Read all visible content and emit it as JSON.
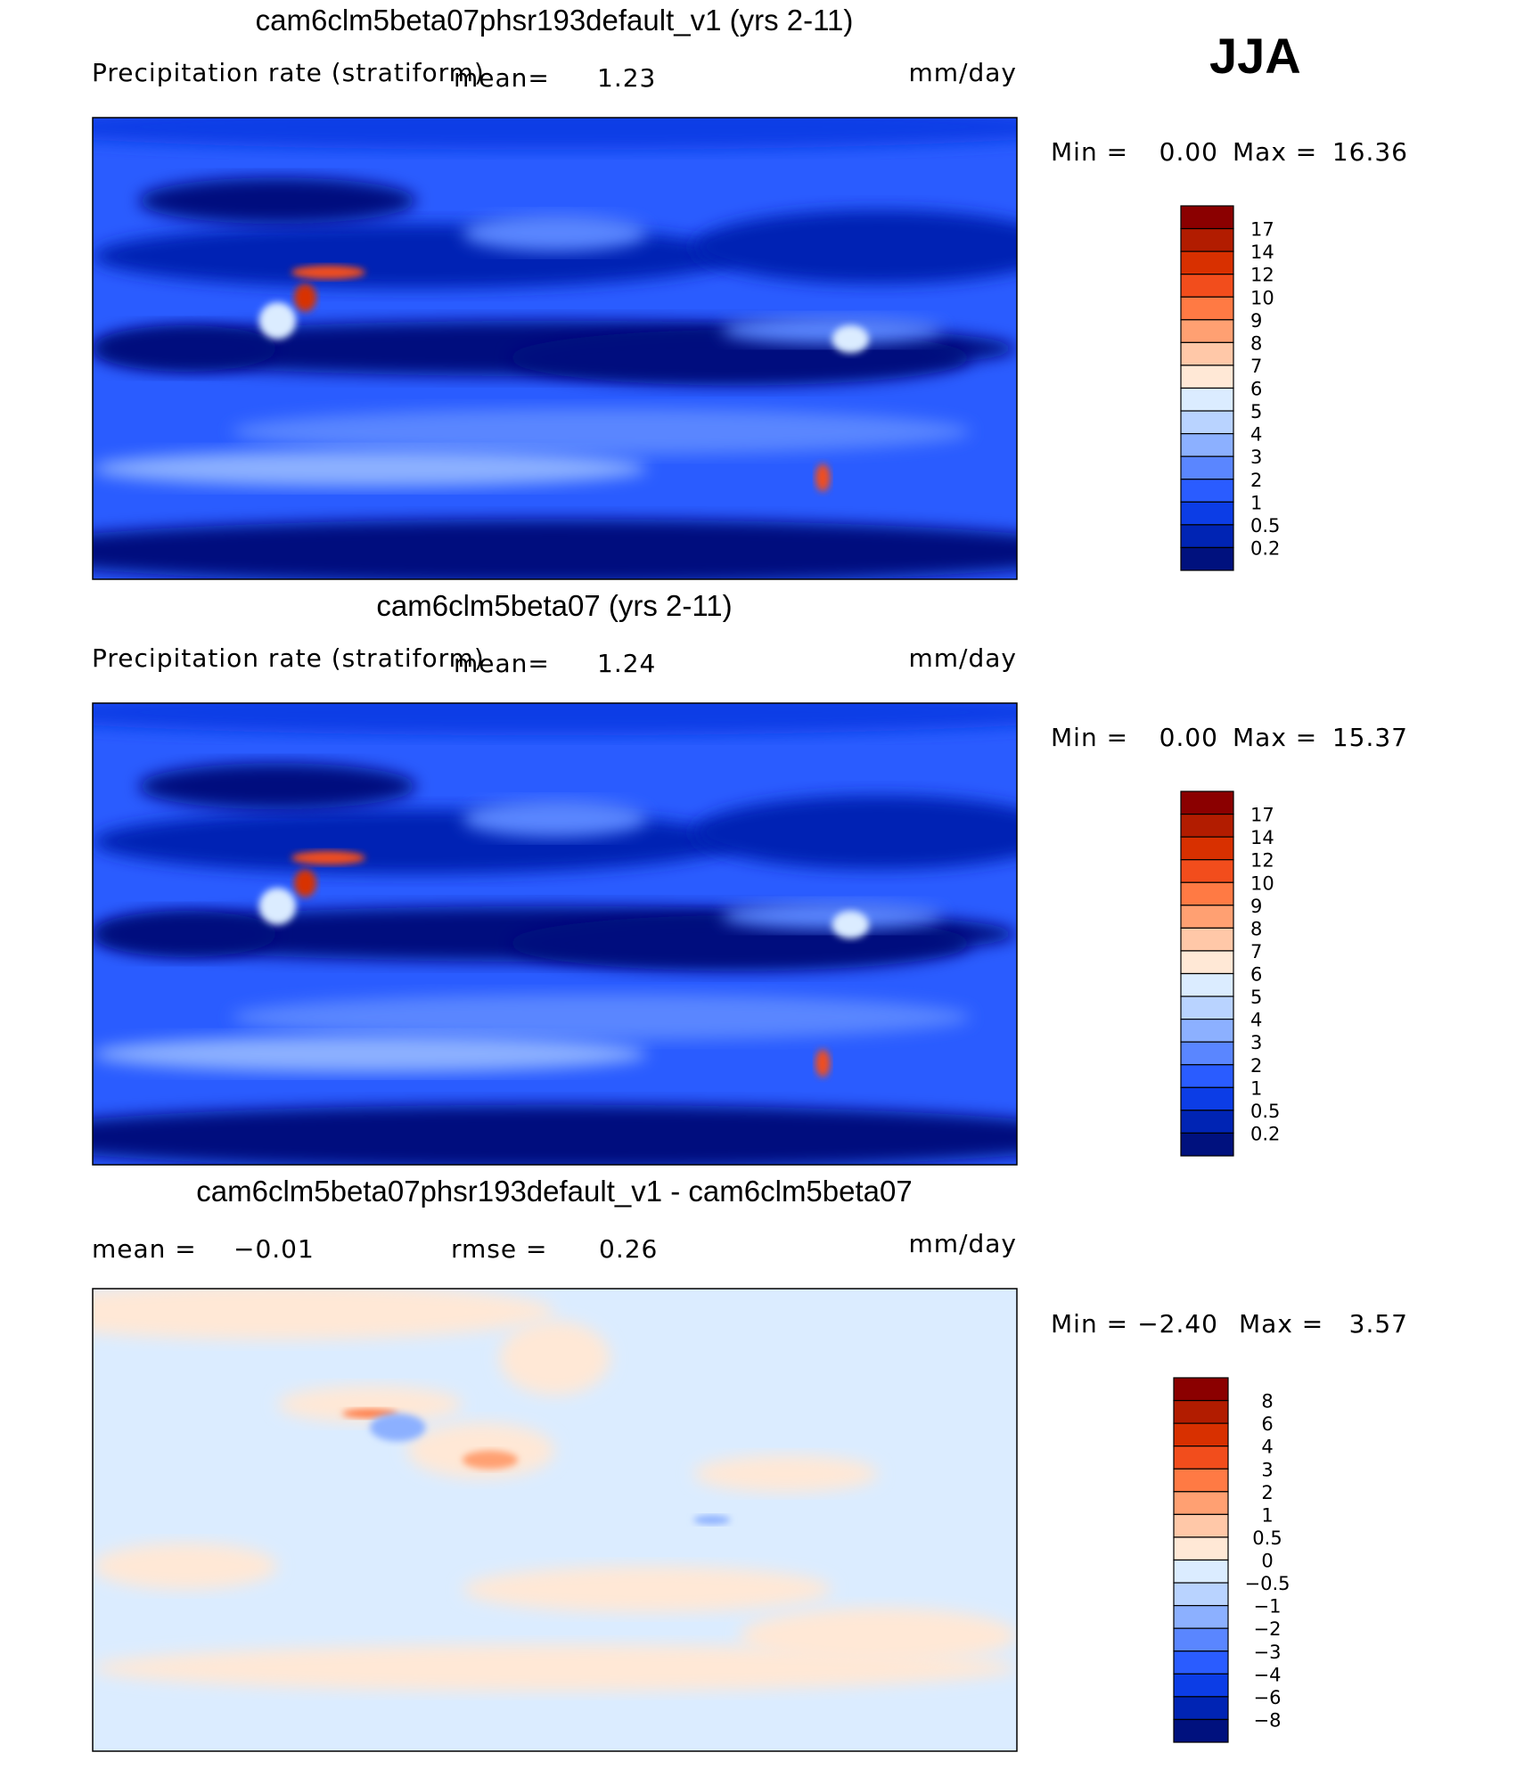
{
  "season": "JJA",
  "panels": [
    {
      "title": "cam6clm5beta07phsr193default_v1 (yrs 2-11)",
      "variable": "Precipitation rate (stratiform)",
      "mean_label": "mean=",
      "mean": "1.23",
      "units": "mm/day",
      "min_label": "Min =",
      "min": "0.00",
      "max_label": "Max =",
      "max": "16.36",
      "colorbar": {
        "labels": [
          "17",
          "14",
          "12",
          "10",
          "9",
          "8",
          "7",
          "6",
          "5",
          "4",
          "3",
          "2",
          "1",
          "0.5",
          "0.2"
        ],
        "colors": [
          "#8b0000",
          "#b21c00",
          "#d83000",
          "#f24d1c",
          "#ff7a44",
          "#ffa072",
          "#ffc8a8",
          "#ffe8d6",
          "#dbecff",
          "#b9d3ff",
          "#8cb0ff",
          "#5a86ff",
          "#2a5cff",
          "#0c3de6",
          "#0024b4",
          "#00117e"
        ]
      }
    },
    {
      "title": "cam6clm5beta07 (yrs 2-11)",
      "variable": "Precipitation rate (stratiform)",
      "mean_label": "mean=",
      "mean": "1.24",
      "units": "mm/day",
      "min_label": "Min =",
      "min": "0.00",
      "max_label": "Max =",
      "max": "15.37",
      "colorbar": {
        "labels": [
          "17",
          "14",
          "12",
          "10",
          "9",
          "8",
          "7",
          "6",
          "5",
          "4",
          "3",
          "2",
          "1",
          "0.5",
          "0.2"
        ],
        "colors": [
          "#8b0000",
          "#b21c00",
          "#d83000",
          "#f24d1c",
          "#ff7a44",
          "#ffa072",
          "#ffc8a8",
          "#ffe8d6",
          "#dbecff",
          "#b9d3ff",
          "#8cb0ff",
          "#5a86ff",
          "#2a5cff",
          "#0c3de6",
          "#0024b4",
          "#00117e"
        ]
      }
    },
    {
      "title": "cam6clm5beta07phsr193default_v1 - cam6clm5beta07",
      "mean_label": "mean =",
      "mean": "−0.01",
      "rmse_label": "rmse =",
      "rmse": "0.26",
      "units": "mm/day",
      "min_label": "Min =",
      "min": "−2.40",
      "max_label": "Max =",
      "max": "3.57",
      "colorbar": {
        "labels": [
          "8",
          "6",
          "4",
          "3",
          "2",
          "1",
          "0.5",
          "0",
          "−0.5",
          "−1",
          "−2",
          "−3",
          "−4",
          "−6",
          "−8"
        ],
        "colors": [
          "#8b0000",
          "#b21c00",
          "#d83000",
          "#f24d1c",
          "#ff7a44",
          "#ffa072",
          "#ffc8a8",
          "#ffe8d6",
          "#dbecff",
          "#b9d3ff",
          "#8cb0ff",
          "#5a86ff",
          "#2a5cff",
          "#0c3de6",
          "#0024b4",
          "#00117e"
        ]
      }
    }
  ]
}
